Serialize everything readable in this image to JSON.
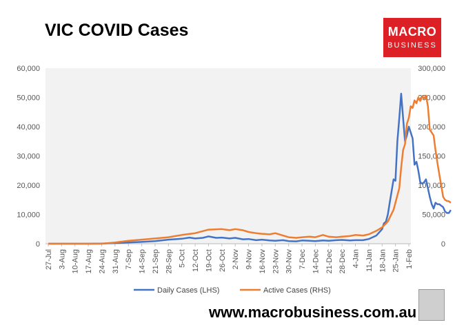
{
  "title": "VIC COVID Cases",
  "logo": {
    "line1": "MACRO",
    "line2": "BUSINESS",
    "color": "#dd1f26"
  },
  "footer": "www.macrobusiness.com.au",
  "chart_data": {
    "type": "line",
    "x_labels": [
      "27-Jul",
      "3-Aug",
      "10-Aug",
      "17-Aug",
      "24-Aug",
      "31-Aug",
      "7-Sep",
      "14-Sep",
      "21-Sep",
      "28-Sep",
      "5-Oct",
      "12-Oct",
      "19-Oct",
      "26-Oct",
      "2-Nov",
      "9-Nov",
      "16-Nov",
      "23-Nov",
      "30-Nov",
      "7-Dec",
      "14-Dec",
      "21-Dec",
      "28-Dec",
      "4-Jan",
      "11-Jan",
      "18-Jan",
      "25-Jan",
      "1-Feb"
    ],
    "y_left": {
      "ticks": [
        "0",
        "10,000",
        "20,000",
        "30,000",
        "40,000",
        "50,000",
        "60,000"
      ],
      "min": 0,
      "max": 60000
    },
    "y_right": {
      "ticks": [
        "0",
        "50,000",
        "100,000",
        "150,000",
        "200,000",
        "250,000",
        "300,000"
      ],
      "min": 0,
      "max": 300000
    },
    "grid": false,
    "legend_position": "bottom",
    "series": [
      {
        "name": "Daily Cases (LHS)",
        "axis": "left",
        "color": "#4472c4",
        "points": [
          [
            0,
            0
          ],
          [
            21,
            0
          ],
          [
            28,
            50
          ],
          [
            35,
            200
          ],
          [
            42,
            400
          ],
          [
            49,
            600
          ],
          [
            56,
            900
          ],
          [
            63,
            1400
          ],
          [
            70,
            1700
          ],
          [
            74,
            2100
          ],
          [
            77,
            1800
          ],
          [
            81,
            2000
          ],
          [
            84,
            2500
          ],
          [
            88,
            2000
          ],
          [
            91,
            2100
          ],
          [
            95,
            1800
          ],
          [
            98,
            2000
          ],
          [
            102,
            1500
          ],
          [
            105,
            1600
          ],
          [
            109,
            1200
          ],
          [
            112,
            1400
          ],
          [
            116,
            1100
          ],
          [
            119,
            1000
          ],
          [
            123,
            1200
          ],
          [
            126,
            900
          ],
          [
            130,
            800
          ],
          [
            133,
            1100
          ],
          [
            137,
            1000
          ],
          [
            140,
            900
          ],
          [
            144,
            1100
          ],
          [
            147,
            1000
          ],
          [
            151,
            1200
          ],
          [
            154,
            1300
          ],
          [
            158,
            1100
          ],
          [
            161,
            1200
          ],
          [
            165,
            1200
          ],
          [
            168,
            1600
          ],
          [
            172,
            2800
          ],
          [
            175,
            5000
          ],
          [
            176,
            7000
          ],
          [
            177,
            7500
          ],
          [
            178,
            10000
          ],
          [
            179,
            14000
          ],
          [
            180,
            18000
          ],
          [
            181,
            22000
          ],
          [
            182,
            21500
          ],
          [
            183,
            35000
          ],
          [
            184,
            43000
          ],
          [
            185,
            51300
          ],
          [
            186,
            43000
          ],
          [
            187,
            35000
          ],
          [
            188,
            37000
          ],
          [
            189,
            40000
          ],
          [
            190,
            38000
          ],
          [
            191,
            36000
          ],
          [
            192,
            27000
          ],
          [
            193,
            28000
          ],
          [
            194,
            25000
          ],
          [
            195,
            21000
          ],
          [
            196,
            20500
          ],
          [
            197,
            21000
          ],
          [
            198,
            22000
          ],
          [
            199,
            19000
          ],
          [
            200,
            16000
          ],
          [
            201,
            13500
          ],
          [
            202,
            12000
          ],
          [
            203,
            14000
          ],
          [
            204,
            13500
          ],
          [
            205,
            13500
          ],
          [
            206,
            13000
          ],
          [
            207,
            12500
          ],
          [
            208,
            11000
          ],
          [
            209,
            10500
          ],
          [
            210,
            10500
          ],
          [
            211,
            11500
          ]
        ]
      },
      {
        "name": "Active Cases (RHS)",
        "axis": "right",
        "color": "#ed7d31",
        "points": [
          [
            0,
            0
          ],
          [
            28,
            0
          ],
          [
            35,
            2000
          ],
          [
            42,
            5000
          ],
          [
            49,
            7000
          ],
          [
            56,
            9000
          ],
          [
            63,
            11000
          ],
          [
            70,
            15000
          ],
          [
            77,
            18000
          ],
          [
            84,
            24000
          ],
          [
            91,
            25000
          ],
          [
            95,
            23000
          ],
          [
            98,
            25000
          ],
          [
            102,
            23000
          ],
          [
            105,
            20000
          ],
          [
            109,
            18000
          ],
          [
            112,
            17000
          ],
          [
            116,
            16000
          ],
          [
            119,
            18000
          ],
          [
            123,
            14000
          ],
          [
            126,
            11000
          ],
          [
            130,
            10000
          ],
          [
            133,
            11000
          ],
          [
            137,
            12000
          ],
          [
            140,
            11000
          ],
          [
            144,
            15000
          ],
          [
            147,
            12000
          ],
          [
            151,
            11000
          ],
          [
            154,
            12000
          ],
          [
            158,
            13000
          ],
          [
            161,
            15000
          ],
          [
            165,
            14000
          ],
          [
            168,
            16000
          ],
          [
            172,
            22000
          ],
          [
            175,
            28000
          ],
          [
            178,
            38000
          ],
          [
            181,
            58000
          ],
          [
            184,
            95000
          ],
          [
            185,
            130000
          ],
          [
            186,
            160000
          ],
          [
            187,
            170000
          ],
          [
            188,
            205000
          ],
          [
            189,
            215000
          ],
          [
            190,
            235000
          ],
          [
            191,
            232000
          ],
          [
            192,
            245000
          ],
          [
            193,
            240000
          ],
          [
            194,
            250000
          ],
          [
            195,
            244000
          ],
          [
            196,
            252000
          ],
          [
            197,
            248000
          ],
          [
            198,
            253000
          ],
          [
            199,
            235000
          ],
          [
            200,
            195000
          ],
          [
            201,
            190000
          ],
          [
            202,
            185000
          ],
          [
            203,
            160000
          ],
          [
            204,
            138000
          ],
          [
            205,
            118000
          ],
          [
            206,
            100000
          ],
          [
            207,
            80000
          ],
          [
            208,
            75000
          ],
          [
            209,
            73000
          ],
          [
            210,
            72500
          ],
          [
            211,
            70000
          ]
        ]
      }
    ]
  }
}
